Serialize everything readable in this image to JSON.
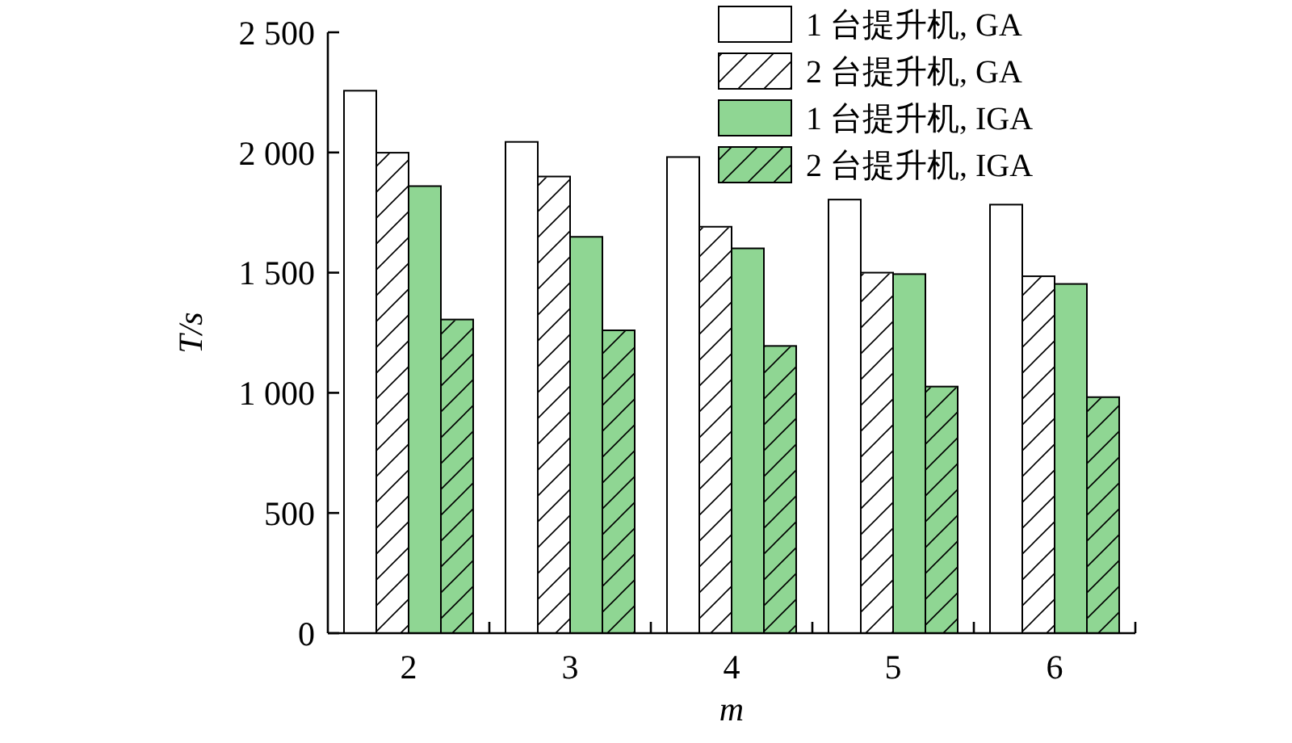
{
  "chart_data": {
    "type": "bar",
    "xlabel": "m",
    "ylabel": "T/s",
    "categories": [
      "2",
      "3",
      "4",
      "5",
      "6"
    ],
    "series": [
      {
        "name": "1 台提升机, GA",
        "color": "#ffffff",
        "values": [
          2257,
          2044,
          1981,
          1804,
          1783
        ]
      },
      {
        "name": "2 台提升机, GA",
        "color": "#ffffff",
        "values": [
          1999,
          1900,
          1691,
          1500,
          1485
        ]
      },
      {
        "name": "1 台提升机, IGA",
        "color": "#8fd693",
        "values": [
          1860,
          1649,
          1601,
          1494,
          1453
        ]
      },
      {
        "name": "2 台提升机, IGA",
        "color": "#8fd693",
        "values": [
          1305,
          1260,
          1195,
          1026,
          982
        ]
      }
    ],
    "ylim": [
      0,
      2500
    ],
    "yticks": [
      0,
      500,
      {
        "value": 1000,
        "label": "1 000"
      },
      {
        "value": 1500,
        "label": "1 500"
      },
      {
        "value": 2000,
        "label": "2 000"
      },
      {
        "value": 2500,
        "label": "2 500"
      }
    ],
    "grid": false,
    "legend": "top right"
  }
}
